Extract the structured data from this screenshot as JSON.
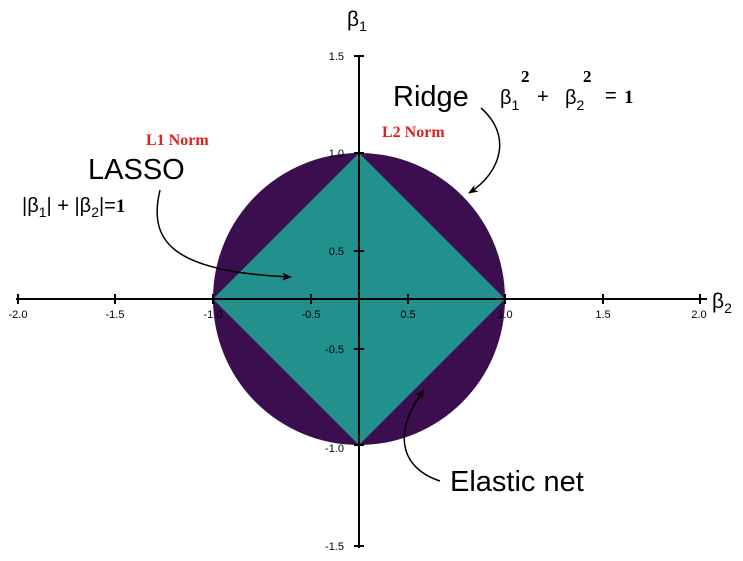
{
  "colors": {
    "ridge": "#3b0f4f",
    "elastic_net": "#fde725",
    "lasso": "#22908c",
    "norm_label": "#e02020",
    "axis": "#000000"
  },
  "axes": {
    "x_label": "β",
    "x_label_sub": "2",
    "y_label": "β",
    "y_label_sub": "1",
    "x_ticks": [
      "-2.0",
      "-1.5",
      "-1.0",
      "-0.5",
      "0.5",
      "1.0",
      "1.5",
      "2.0"
    ],
    "y_ticks": [
      "1.5",
      "1.0",
      "0.5",
      "-0.5",
      "-1.0",
      "-1.5"
    ]
  },
  "labels": {
    "ridge": "Ridge",
    "lasso": "LASSO",
    "elastic_net": "Elastic net",
    "l1_norm": "L1 Norm",
    "l2_norm": "L2 Norm"
  },
  "ridge_formula": {
    "b1": "β",
    "b1_sub": "1",
    "b1_sup": "2",
    "plus": "+",
    "b2": "β",
    "b2_sub": "2",
    "b2_sup": "2",
    "equals": "=",
    "rhs": "1"
  },
  "lasso_formula": {
    "open1": "|β",
    "sub1": "1",
    "mid": "| + |β",
    "sub2": "2",
    "close": "|=",
    "rhs": "1"
  }
}
